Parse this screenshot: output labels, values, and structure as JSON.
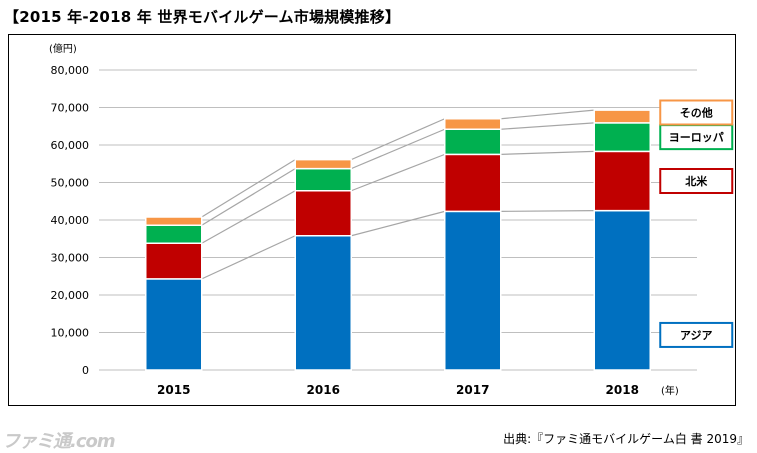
{
  "page": {
    "title": "【2015 年-2018 年 世界モバイルゲーム市場規模推移】",
    "source": "出典:『ファミ通モバイルゲーム白 書 2019』",
    "watermark": "ファミ通.com"
  },
  "chart_data": {
    "type": "bar",
    "stacked": true,
    "categories": [
      "2015",
      "2016",
      "2017",
      "2018"
    ],
    "series": [
      {
        "name": "アジア",
        "color": "#0070c0",
        "values": [
          24300,
          35800,
          42300,
          42500
        ]
      },
      {
        "name": "北米",
        "color": "#c00000",
        "values": [
          9500,
          12000,
          15200,
          15800
        ]
      },
      {
        "name": "ヨーロッパ",
        "color": "#00b050",
        "values": [
          4800,
          5900,
          6700,
          7600
        ]
      },
      {
        "name": "その他",
        "color": "#f79646",
        "values": [
          2200,
          2400,
          2800,
          3400
        ]
      }
    ],
    "y_unit": "(億円)",
    "x_unit": "(年)",
    "ylim": [
      0,
      80000
    ],
    "y_ticks": [
      "0",
      "10,000",
      "20,000",
      "30,000",
      "40,000",
      "50,000",
      "60,000",
      "70,000",
      "80,000"
    ],
    "grid": true,
    "legend_placement": "right, beside last bar"
  }
}
